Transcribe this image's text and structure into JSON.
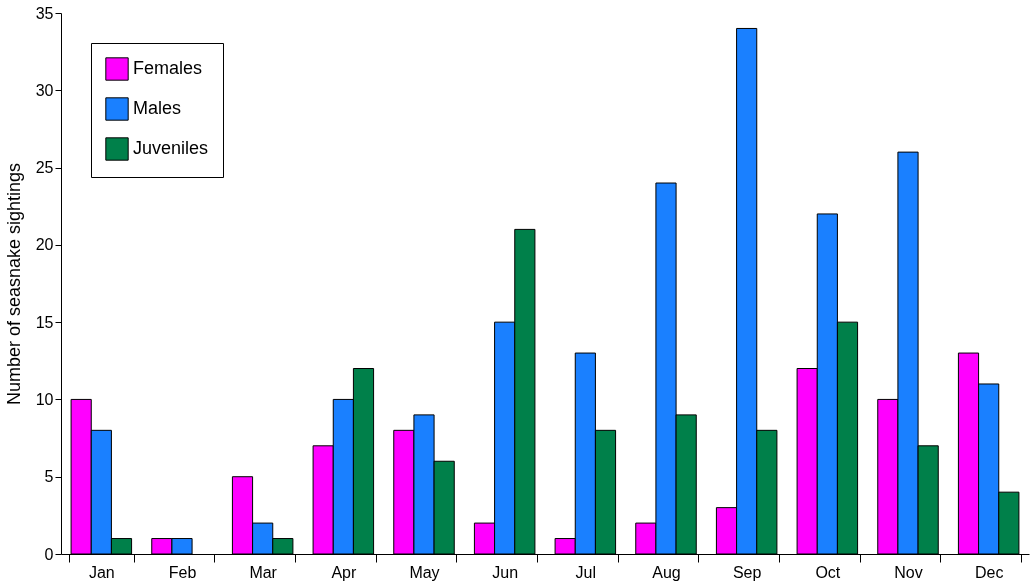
{
  "chart_data": {
    "type": "bar",
    "ylabel": "Number of seasnake sightings",
    "categories": [
      "Jan",
      "Feb",
      "Mar",
      "Apr",
      "May",
      "Jun",
      "Jul",
      "Aug",
      "Sep",
      "Oct",
      "Nov",
      "Dec"
    ],
    "series": [
      {
        "name": "Females",
        "color": "#ff00ff",
        "values": [
          10,
          1,
          5,
          7,
          8,
          2,
          1,
          2,
          3,
          12,
          10,
          13
        ]
      },
      {
        "name": "Males",
        "color": "#1a80ff",
        "values": [
          8,
          1,
          2,
          10,
          9,
          15,
          13,
          24,
          34,
          22,
          26,
          11
        ]
      },
      {
        "name": "Juveniles",
        "color": "#00804a",
        "values": [
          1,
          null,
          1,
          12,
          6,
          21,
          8,
          9,
          8,
          15,
          7,
          4
        ]
      }
    ],
    "ylim": [
      0,
      35
    ],
    "yticks": [
      0,
      5,
      10,
      15,
      20,
      25,
      30,
      35
    ],
    "grid": false,
    "legend": "top left"
  }
}
